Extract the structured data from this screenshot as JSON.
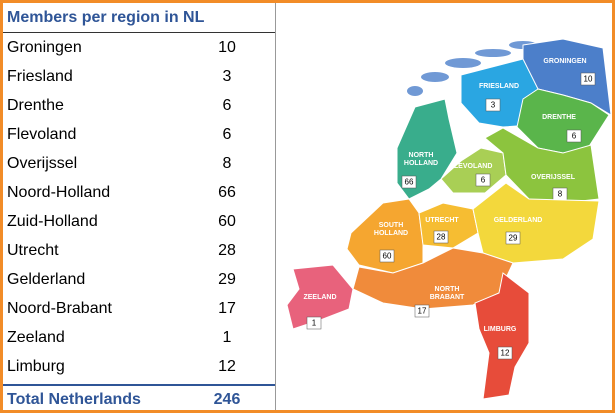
{
  "table": {
    "title": "Members per region in NL",
    "rows": [
      [
        "Groningen",
        10
      ],
      [
        "Friesland",
        3
      ],
      [
        "Drenthe",
        6
      ],
      [
        "Flevoland",
        6
      ],
      [
        "Overijssel",
        8
      ],
      [
        "Noord-Holland",
        66
      ],
      [
        "Zuid-Holland",
        60
      ],
      [
        "Utrecht",
        28
      ],
      [
        "Gelderland",
        29
      ],
      [
        "Noord-Brabant",
        17
      ],
      [
        "Zeeland",
        1
      ],
      [
        "Limburg",
        12
      ]
    ],
    "total": [
      "Total Netherlands",
      246
    ]
  },
  "map": {
    "regions": [
      {
        "label": "GRONINGEN",
        "value": 10,
        "color": "#4c7fca"
      },
      {
        "label": "FRIESLAND",
        "value": 3,
        "color": "#2aa6e2"
      },
      {
        "label": "DRENTHE",
        "value": 6,
        "color": "#5ab54b"
      },
      {
        "label": "FLEVOLAND",
        "value": 6,
        "color": "#a9cf55"
      },
      {
        "label": "OVERIJSSEL",
        "value": 8,
        "color": "#8cc43e"
      },
      {
        "label": "NORTH HOLLAND",
        "value": 66,
        "color": "#39ad8c"
      },
      {
        "label": "SOUTH HOLLAND",
        "value": 60,
        "color": "#f5a630"
      },
      {
        "label": "UTRECHT",
        "value": 28,
        "color": "#f6bd32"
      },
      {
        "label": "GELDERLAND",
        "value": 29,
        "color": "#f3d83c"
      },
      {
        "label": "NORTH BRABANT",
        "value": 17,
        "color": "#f08b3b"
      },
      {
        "label": "ZEELAND",
        "value": 1,
        "color": "#e8627c"
      },
      {
        "label": "LIMBURG",
        "value": 12,
        "color": "#e74c3a"
      }
    ]
  }
}
